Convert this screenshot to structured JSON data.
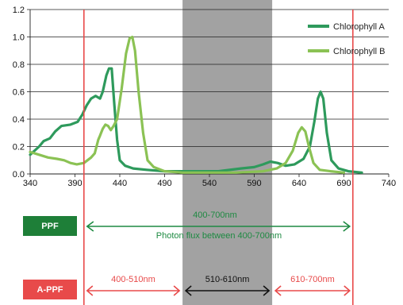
{
  "chart_data": {
    "type": "line",
    "x_ticks": [
      340,
      390,
      440,
      490,
      540,
      590,
      640,
      690,
      740
    ],
    "y_ticks": [
      "0.0",
      "0.2",
      "0.4",
      "0.6",
      "0.8",
      "1.0",
      "1.2"
    ],
    "xlim": [
      340,
      740
    ],
    "ylim": [
      0,
      1.2
    ],
    "grid": "horizontal",
    "legend_position": "top-right",
    "series": [
      {
        "name": "Chlorophyll A",
        "color": "#2e9a5c",
        "points": [
          [
            340,
            0.14
          ],
          [
            345,
            0.17
          ],
          [
            350,
            0.2
          ],
          [
            355,
            0.24
          ],
          [
            362,
            0.26
          ],
          [
            368,
            0.31
          ],
          [
            375,
            0.35
          ],
          [
            385,
            0.36
          ],
          [
            393,
            0.38
          ],
          [
            398,
            0.43
          ],
          [
            403,
            0.5
          ],
          [
            408,
            0.55
          ],
          [
            413,
            0.57
          ],
          [
            418,
            0.55
          ],
          [
            421,
            0.6
          ],
          [
            425,
            0.72
          ],
          [
            428,
            0.77
          ],
          [
            431,
            0.77
          ],
          [
            434,
            0.5
          ],
          [
            437,
            0.25
          ],
          [
            440,
            0.1
          ],
          [
            446,
            0.06
          ],
          [
            455,
            0.04
          ],
          [
            470,
            0.03
          ],
          [
            490,
            0.02
          ],
          [
            520,
            0.02
          ],
          [
            550,
            0.02
          ],
          [
            575,
            0.04
          ],
          [
            590,
            0.05
          ],
          [
            600,
            0.07
          ],
          [
            608,
            0.09
          ],
          [
            616,
            0.08
          ],
          [
            625,
            0.06
          ],
          [
            635,
            0.07
          ],
          [
            645,
            0.11
          ],
          [
            652,
            0.2
          ],
          [
            657,
            0.38
          ],
          [
            661,
            0.55
          ],
          [
            664,
            0.6
          ],
          [
            667,
            0.55
          ],
          [
            671,
            0.3
          ],
          [
            676,
            0.1
          ],
          [
            684,
            0.04
          ],
          [
            695,
            0.02
          ],
          [
            710,
            0.01
          ]
        ]
      },
      {
        "name": "Chlorophyll B",
        "color": "#8bc254",
        "points": [
          [
            340,
            0.16
          ],
          [
            350,
            0.14
          ],
          [
            360,
            0.12
          ],
          [
            370,
            0.11
          ],
          [
            378,
            0.1
          ],
          [
            385,
            0.08
          ],
          [
            392,
            0.07
          ],
          [
            400,
            0.08
          ],
          [
            408,
            0.12
          ],
          [
            412,
            0.15
          ],
          [
            416,
            0.25
          ],
          [
            418,
            0.28
          ],
          [
            421,
            0.33
          ],
          [
            424,
            0.36
          ],
          [
            427,
            0.35
          ],
          [
            430,
            0.32
          ],
          [
            433,
            0.35
          ],
          [
            437,
            0.4
          ],
          [
            442,
            0.62
          ],
          [
            447,
            0.88
          ],
          [
            451,
            0.99
          ],
          [
            454,
            1.0
          ],
          [
            457,
            0.9
          ],
          [
            461,
            0.6
          ],
          [
            466,
            0.3
          ],
          [
            471,
            0.1
          ],
          [
            478,
            0.05
          ],
          [
            490,
            0.02
          ],
          [
            510,
            0.01
          ],
          [
            540,
            0.01
          ],
          [
            570,
            0.01
          ],
          [
            600,
            0.02
          ],
          [
            615,
            0.04
          ],
          [
            625,
            0.08
          ],
          [
            633,
            0.17
          ],
          [
            639,
            0.3
          ],
          [
            643,
            0.34
          ],
          [
            647,
            0.31
          ],
          [
            651,
            0.2
          ],
          [
            656,
            0.08
          ],
          [
            663,
            0.03
          ],
          [
            675,
            0.02
          ],
          [
            690,
            0.01
          ]
        ]
      }
    ],
    "band": {
      "from": 510,
      "to": 610,
      "color": "#a2a2a2"
    },
    "markers": [
      {
        "x": 400,
        "color": "#e84a4a"
      },
      {
        "x": 700,
        "color": "#e84a4a"
      }
    ]
  },
  "annotations": {
    "ppf": {
      "badge": "PPF",
      "badge_color": "#1e7f38",
      "range_from": 400,
      "range_to": 700,
      "label": "400-700nm",
      "subtitle": "Photon flux between 400-700nm",
      "color": "#1e8a42"
    },
    "appf": {
      "badge": "A-PPF",
      "badge_color": "#e84a4a",
      "segments": [
        {
          "from": 400,
          "to": 510,
          "label": "400-510nm",
          "color": "#e84a4a"
        },
        {
          "from": 510,
          "to": 610,
          "label": "510-610nm",
          "color": "#111111"
        },
        {
          "from": 610,
          "to": 700,
          "label": "610-700nm",
          "color": "#e84a4a"
        }
      ]
    }
  }
}
